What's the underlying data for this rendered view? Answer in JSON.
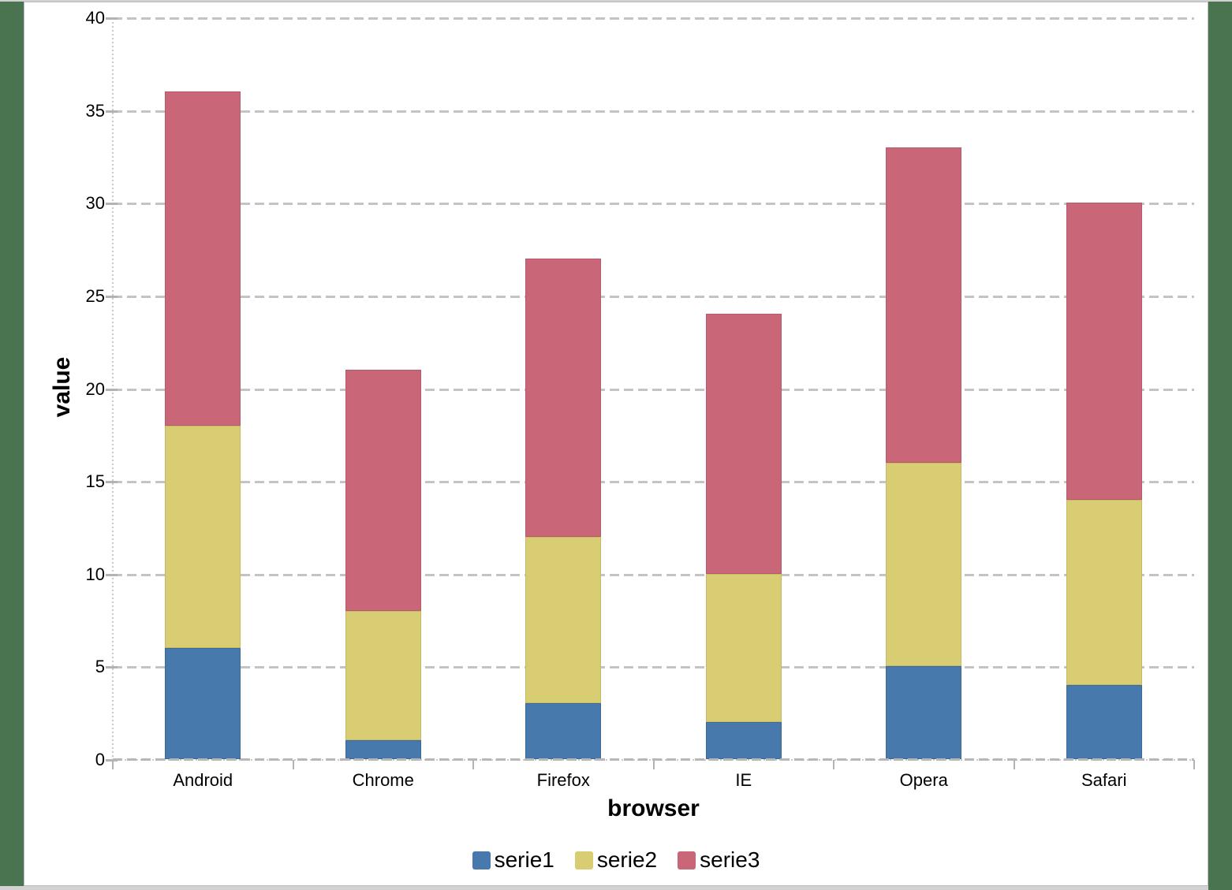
{
  "frame": {
    "background_green": "#4a7450",
    "strip_gray": "#d2d2d2",
    "panel_border": "#b9bcbe",
    "panel_background": "#ffffff"
  },
  "chart_data": {
    "type": "bar",
    "stacked": true,
    "xlabel": "browser",
    "ylabel": "value",
    "categories": [
      "Android",
      "Chrome",
      "Firefox",
      "IE",
      "Opera",
      "Safari"
    ],
    "series": [
      {
        "name": "serie1",
        "color": "#4779ad",
        "border_color": "#3a699c",
        "values": [
          6,
          1,
          3,
          2,
          5,
          4
        ]
      },
      {
        "name": "serie2",
        "color": "#d9cd74",
        "border_color": "#c5b964",
        "values": [
          12,
          7,
          9,
          8,
          11,
          10
        ]
      },
      {
        "name": "serie3",
        "color": "#c96677",
        "border_color": "#b65a6b",
        "values": [
          18,
          13,
          15,
          14,
          17,
          16
        ]
      }
    ],
    "ylim": [
      0,
      40
    ],
    "yticks": [
      0,
      5,
      10,
      15,
      20,
      25,
      30,
      35,
      40
    ],
    "grid": "dashed horizontal",
    "legend_position": "bottom",
    "gridline_color": "#c4c4c4",
    "axis_line_color": "#c9c9c9",
    "tick_color": "#b3b3b3",
    "text_color": "#000000"
  }
}
